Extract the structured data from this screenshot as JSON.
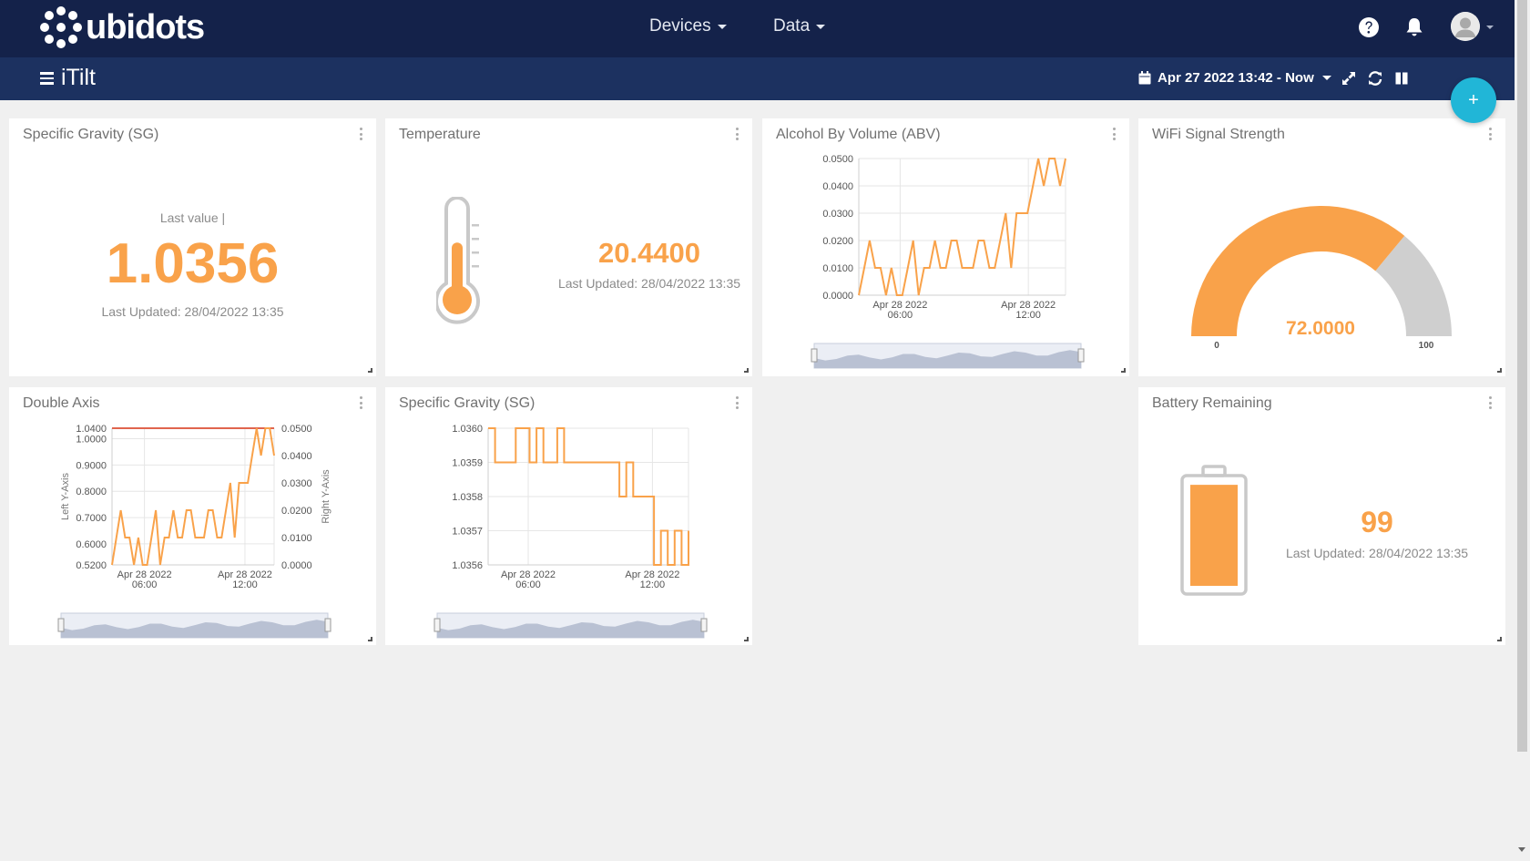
{
  "brand": {
    "name": "ubidots"
  },
  "nav": {
    "devices": "Devices",
    "data": "Data"
  },
  "dashboard": {
    "title": "iTilt",
    "date_range": "Apr 27 2022 13:42 - Now",
    "add": "+"
  },
  "colors": {
    "accent": "#f9a24a",
    "topbar": "#14224a",
    "subbar": "#1c3160",
    "fab": "#21b6d7",
    "gauge_rest": "#cfcfcf",
    "threshold_line": "#e0654e"
  },
  "widgets": {
    "sg_metric": {
      "title": "Specific Gravity (SG)",
      "label": "Last value |",
      "value": "1.0356",
      "updated": "Last Updated: 28/04/2022 13:35"
    },
    "temperature": {
      "title": "Temperature",
      "value": "20.4400",
      "updated": "Last Updated: 28/04/2022 13:35",
      "fill_fraction": 0.45
    },
    "abv": {
      "title": "Alcohol By Volume (ABV)"
    },
    "wifi": {
      "title": "WiFi Signal Strength",
      "value": "72.0000",
      "min": "0",
      "max": "100",
      "level": 72
    },
    "double_axis": {
      "title": "Double Axis"
    },
    "sg_chart": {
      "title": "Specific Gravity (SG)"
    },
    "battery": {
      "title": "Battery Remaining",
      "value": "99",
      "updated": "Last Updated: 28/04/2022 13:35",
      "level": 99
    }
  },
  "chart_data": [
    {
      "id": "abv",
      "type": "line",
      "y_ticks": [
        "0.0500",
        "0.0400",
        "0.0300",
        "0.0200",
        "0.0100",
        "0.0000"
      ],
      "ylim": [
        0,
        0.05
      ],
      "x_ticks": [
        [
          "Apr 28 2022",
          "06:00"
        ],
        [
          "Apr 28 2022",
          "12:00"
        ]
      ],
      "grid": true,
      "series": [
        {
          "values": [
            0,
            0.01,
            0.02,
            0.01,
            0.01,
            0,
            0.01,
            0,
            0,
            0.01,
            0.02,
            0,
            0.01,
            0.01,
            0.02,
            0.01,
            0.01,
            0.02,
            0.02,
            0.01,
            0.01,
            0.01,
            0.02,
            0.02,
            0.01,
            0.01,
            0.02,
            0.03,
            0.01,
            0.03,
            0.03,
            0.03,
            0.04,
            0.05,
            0.04,
            0.05,
            0.05,
            0.04,
            0.05
          ]
        }
      ]
    },
    {
      "id": "double_axis",
      "type": "line",
      "ylabel": "Left Y-Axis",
      "y2label": "Right Y-Axis",
      "y_ticks": [
        "1.0400",
        "1.0000",
        "0.9000",
        "0.8000",
        "0.7000",
        "0.6000",
        "0.5200"
      ],
      "ylim": [
        0.52,
        1.04
      ],
      "y2_ticks": [
        "0.0500",
        "0.0400",
        "0.0300",
        "0.0200",
        "0.0100",
        "0.0000"
      ],
      "y2lim": [
        0,
        0.05
      ],
      "x_ticks": [
        [
          "Apr 28 2022",
          "06:00"
        ],
        [
          "Apr 28 2022",
          "12:00"
        ]
      ],
      "grid": true,
      "series": [
        {
          "axis": "left",
          "color": "#e0654e",
          "values": [
            1.04,
            1.04
          ]
        },
        {
          "axis": "right",
          "color": "#f9a24a",
          "values": [
            0,
            0.01,
            0.02,
            0.01,
            0.01,
            0,
            0.01,
            0,
            0,
            0.01,
            0.02,
            0,
            0.01,
            0.01,
            0.02,
            0.01,
            0.01,
            0.02,
            0.02,
            0.01,
            0.01,
            0.01,
            0.02,
            0.02,
            0.01,
            0.01,
            0.02,
            0.03,
            0.01,
            0.03,
            0.03,
            0.03,
            0.04,
            0.05,
            0.04,
            0.05,
            0.05,
            0.04
          ]
        }
      ]
    },
    {
      "id": "sg_chart",
      "type": "line",
      "y_ticks": [
        "1.0360",
        "1.0359",
        "1.0358",
        "1.0357",
        "1.0356"
      ],
      "ylim": [
        1.0356,
        1.036
      ],
      "x_ticks": [
        [
          "Apr 28 2022",
          "06:00"
        ],
        [
          "Apr 28 2022",
          "12:00"
        ]
      ],
      "grid": true,
      "series": [
        {
          "step": true,
          "values": [
            1.036,
            1.0359,
            1.0359,
            1.0359,
            1.036,
            1.036,
            1.0359,
            1.036,
            1.0359,
            1.0359,
            1.036,
            1.0359,
            1.0359,
            1.0359,
            1.0359,
            1.0359,
            1.0359,
            1.0359,
            1.0359,
            1.0358,
            1.0359,
            1.0358,
            1.0358,
            1.0358,
            1.0356,
            1.0357,
            1.0356,
            1.0357,
            1.0356,
            1.0357
          ]
        }
      ]
    }
  ]
}
